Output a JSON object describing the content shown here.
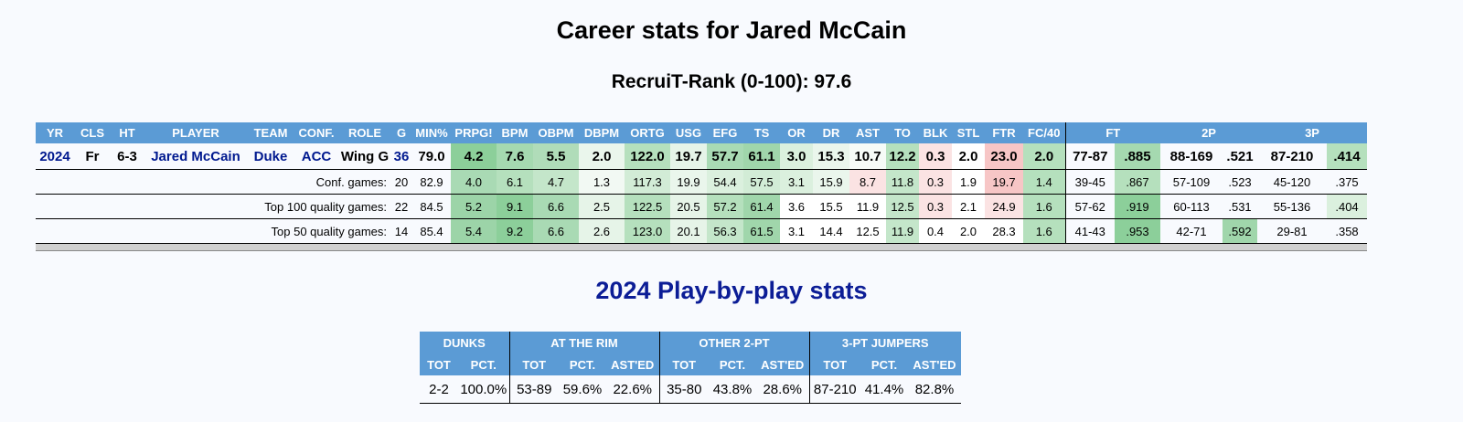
{
  "page": {
    "title": "Career stats for Jared McCain",
    "rank": "RecruiT-Rank (0-100): 97.6",
    "pbp_title": "2024 Play-by-play stats"
  },
  "colors": {
    "header_bg": "#5b9bd5",
    "link": "#00198f",
    "green_strong": "#8ccf9a",
    "green_mid": "#b5e0bd",
    "green_light": "#dbf0de",
    "red_mid": "#f7c6c6",
    "red_light": "#fbe3e3"
  },
  "career": {
    "columns": [
      "YR",
      "CLS",
      "HT",
      "PLAYER",
      "TEAM",
      "CONF.",
      "ROLE",
      "G",
      "MIN%",
      "PRPG!",
      "BPM",
      "OBPM",
      "DBPM",
      "ORTG",
      "USG",
      "EFG",
      "TS",
      "OR",
      "DR",
      "AST",
      "TO",
      "BLK",
      "STL",
      "FTR",
      "FC/40",
      "FT",
      "2P",
      "3P"
    ],
    "main": {
      "yr": "2024",
      "cls": "Fr",
      "ht": "6-3",
      "player": "Jared McCain",
      "team": "Duke",
      "conf": "ACC",
      "role": "Wing G",
      "cells": [
        {
          "v": "36",
          "bg": "",
          "link": true
        },
        {
          "v": "79.0",
          "bg": ""
        },
        {
          "v": "4.2",
          "bg": "#8ccf9a"
        },
        {
          "v": "7.6",
          "bg": "#a5d9b0"
        },
        {
          "v": "5.5",
          "bg": "#b0dcb9"
        },
        {
          "v": "2.0",
          "bg": "#eaf6ec"
        },
        {
          "v": "122.0",
          "bg": "#b5e0bd"
        },
        {
          "v": "19.7",
          "bg": "#e6f4e8"
        },
        {
          "v": "57.7",
          "bg": "#a9dab4"
        },
        {
          "v": "61.1",
          "bg": "#a0d6ab"
        },
        {
          "v": "3.0",
          "bg": "#dbf0de"
        },
        {
          "v": "15.3",
          "bg": "#eaf6ec"
        },
        {
          "v": "10.7",
          "bg": "#f6fbf7"
        },
        {
          "v": "12.2",
          "bg": "#b5e0bd"
        },
        {
          "v": "0.3",
          "bg": "#fbe3e3"
        },
        {
          "v": "2.0",
          "bg": "#ffffff"
        },
        {
          "v": "23.0",
          "bg": "#f7c6c6"
        },
        {
          "v": "2.0",
          "bg": "#b5e0bd"
        },
        {
          "v": "77-87",
          "bg": ""
        },
        {
          "v": ".885",
          "bg": "#a5d9b0"
        },
        {
          "v": "88-169",
          "bg": ""
        },
        {
          "v": ".521",
          "bg": ""
        },
        {
          "v": "87-210",
          "bg": ""
        },
        {
          "v": ".414",
          "bg": "#b5e0bd"
        }
      ]
    },
    "subs": [
      {
        "label": "Conf. games:",
        "cells": [
          {
            "v": "20",
            "bg": ""
          },
          {
            "v": "82.9",
            "bg": ""
          },
          {
            "v": "4.0",
            "bg": "#a9dab4"
          },
          {
            "v": "6.1",
            "bg": "#b5e0bd"
          },
          {
            "v": "4.7",
            "bg": "#c4e6ca"
          },
          {
            "v": "1.3",
            "bg": "#f2f9f3"
          },
          {
            "v": "117.3",
            "bg": "#d2ecd6"
          },
          {
            "v": "19.9",
            "bg": "#eaf6ec"
          },
          {
            "v": "54.4",
            "bg": "#dbf0de"
          },
          {
            "v": "57.5",
            "bg": "#d2ecd6"
          },
          {
            "v": "3.1",
            "bg": "#dbf0de"
          },
          {
            "v": "15.9",
            "bg": "#eaf6ec"
          },
          {
            "v": "8.7",
            "bg": "#fbe3e3"
          },
          {
            "v": "11.8",
            "bg": "#c4e6ca"
          },
          {
            "v": "0.3",
            "bg": "#fbe3e3"
          },
          {
            "v": "1.9",
            "bg": "#ffffff"
          },
          {
            "v": "19.7",
            "bg": "#f7c6c6"
          },
          {
            "v": "1.4",
            "bg": "#b5e0bd"
          },
          {
            "v": "39-45",
            "bg": ""
          },
          {
            "v": ".867",
            "bg": "#b5e0bd"
          },
          {
            "v": "57-109",
            "bg": ""
          },
          {
            "v": ".523",
            "bg": ""
          },
          {
            "v": "45-120",
            "bg": ""
          },
          {
            "v": ".375",
            "bg": ""
          }
        ]
      },
      {
        "label": "Top 100 quality games:",
        "cells": [
          {
            "v": "22",
            "bg": ""
          },
          {
            "v": "84.5",
            "bg": ""
          },
          {
            "v": "5.2",
            "bg": "#9cd4a8"
          },
          {
            "v": "9.1",
            "bg": "#8ccf9a"
          },
          {
            "v": "6.6",
            "bg": "#a9dab4"
          },
          {
            "v": "2.5",
            "bg": "#e6f4e8"
          },
          {
            "v": "122.5",
            "bg": "#b5e0bd"
          },
          {
            "v": "20.5",
            "bg": "#e6f4e8"
          },
          {
            "v": "57.2",
            "bg": "#b5e0bd"
          },
          {
            "v": "61.4",
            "bg": "#a0d6ab"
          },
          {
            "v": "3.6",
            "bg": "#ffffff"
          },
          {
            "v": "15.5",
            "bg": "#ffffff"
          },
          {
            "v": "11.9",
            "bg": "#ffffff"
          },
          {
            "v": "12.5",
            "bg": "#c4e6ca"
          },
          {
            "v": "0.3",
            "bg": "#fbe3e3"
          },
          {
            "v": "2.1",
            "bg": "#ffffff"
          },
          {
            "v": "24.9",
            "bg": "#fbe3e3"
          },
          {
            "v": "1.6",
            "bg": "#b5e0bd"
          },
          {
            "v": "57-62",
            "bg": ""
          },
          {
            "v": ".919",
            "bg": "#8ccf9a"
          },
          {
            "v": "60-113",
            "bg": ""
          },
          {
            "v": ".531",
            "bg": ""
          },
          {
            "v": "55-136",
            "bg": ""
          },
          {
            "v": ".404",
            "bg": "#dbf0de"
          }
        ]
      },
      {
        "label": "Top 50 quality games:",
        "cells": [
          {
            "v": "14",
            "bg": ""
          },
          {
            "v": "85.4",
            "bg": ""
          },
          {
            "v": "5.4",
            "bg": "#9cd4a8"
          },
          {
            "v": "9.2",
            "bg": "#8ccf9a"
          },
          {
            "v": "6.6",
            "bg": "#a9dab4"
          },
          {
            "v": "2.6",
            "bg": "#e6f4e8"
          },
          {
            "v": "123.0",
            "bg": "#b5e0bd"
          },
          {
            "v": "20.1",
            "bg": "#e6f4e8"
          },
          {
            "v": "56.3",
            "bg": "#c4e6ca"
          },
          {
            "v": "61.5",
            "bg": "#a0d6ab"
          },
          {
            "v": "3.1",
            "bg": "#ffffff"
          },
          {
            "v": "14.4",
            "bg": "#ffffff"
          },
          {
            "v": "12.5",
            "bg": "#ffffff"
          },
          {
            "v": "11.9",
            "bg": "#c4e6ca"
          },
          {
            "v": "0.4",
            "bg": "#ffffff"
          },
          {
            "v": "2.0",
            "bg": "#ffffff"
          },
          {
            "v": "28.3",
            "bg": "#ffffff"
          },
          {
            "v": "1.6",
            "bg": "#b5e0bd"
          },
          {
            "v": "41-43",
            "bg": ""
          },
          {
            "v": ".953",
            "bg": "#8ccf9a"
          },
          {
            "v": "42-71",
            "bg": ""
          },
          {
            "v": ".592",
            "bg": "#a0d6ab"
          },
          {
            "v": "29-81",
            "bg": ""
          },
          {
            "v": ".358",
            "bg": ""
          }
        ]
      }
    ]
  },
  "pbp": {
    "groups": [
      "DUNKS",
      "AT THE RIM",
      "OTHER 2-PT",
      "3-PT JUMPERS"
    ],
    "cols": [
      "TOT",
      "PCT.",
      "TOT",
      "PCT.",
      "AST'ED",
      "TOT",
      "PCT.",
      "AST'ED",
      "TOT",
      "PCT.",
      "AST'ED"
    ],
    "values": [
      "2-2",
      "100.0%",
      "53-89",
      "59.6%",
      "22.6%",
      "35-80",
      "43.8%",
      "28.6%",
      "87-210",
      "41.4%",
      "82.8%"
    ]
  }
}
